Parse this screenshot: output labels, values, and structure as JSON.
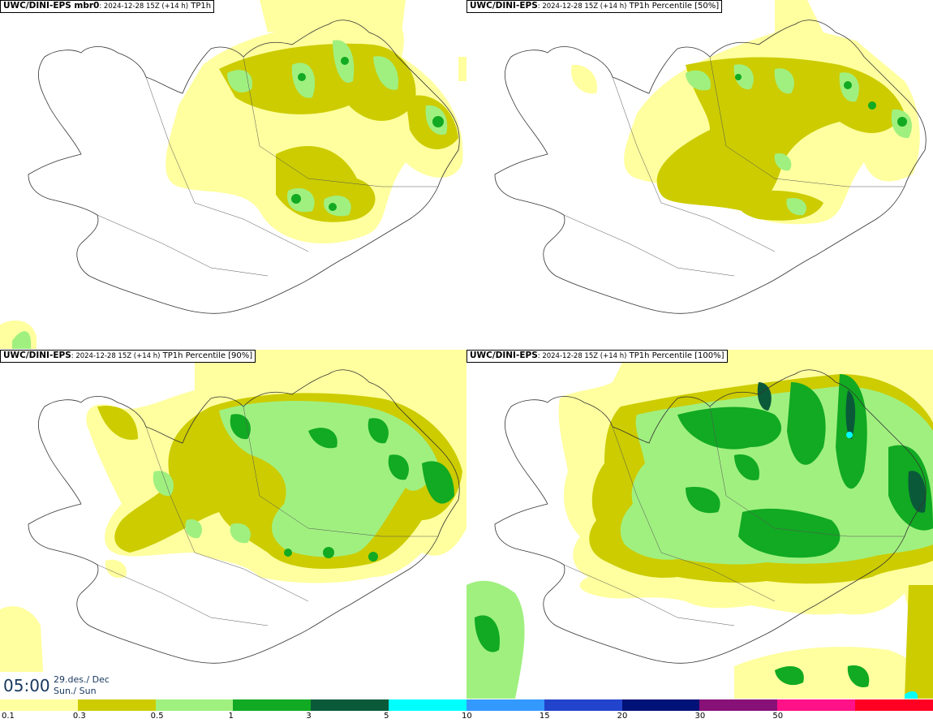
{
  "panels": [
    {
      "model": "UWC/DINI-EPS mbr0",
      "meta": ": 2024-12-28 15Z (+14 h)",
      "variable": "TP1h"
    },
    {
      "model": "UWC/DINI-EPS",
      "meta": ": 2024-12-28 15Z (+14 h)",
      "variable": "TP1h Percentile [50%]"
    },
    {
      "model": "UWC/DINI-EPS",
      "meta": ": 2024-12-28 15Z (+14 h)",
      "variable": "TP1h Percentile [90%]"
    },
    {
      "model": "UWC/DINI-EPS",
      "meta": ": 2024-12-28 15Z (+14 h)",
      "variable": "TP1h Percentile [100%]"
    }
  ],
  "valid_time": {
    "time": "05:00",
    "date_line1": "29.des./ Dec",
    "date_line2": "Sun./ Sun"
  },
  "legend": {
    "ticks": [
      "0.1",
      "0.3",
      "0.5",
      "1",
      "3",
      "5",
      "10",
      "15",
      "20",
      "30",
      "50"
    ],
    "colors": [
      "#ffff9f",
      "#cccc00",
      "#a0f080",
      "#11aa22",
      "#0a5a3a",
      "#00ffff",
      "#3399ff",
      "#2244cc",
      "#001177",
      "#881177",
      "#ff1188",
      "#ff0022"
    ]
  }
}
